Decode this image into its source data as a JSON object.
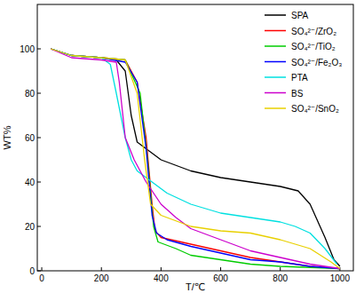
{
  "chart_data": {
    "type": "line",
    "x_label": "T/℃",
    "y_label": "WT%",
    "xlim": [
      -15,
      1045
    ],
    "ylim": [
      0,
      120
    ],
    "xticks": [
      0,
      200,
      400,
      600,
      800,
      1000
    ],
    "yticks": [
      0,
      20,
      40,
      60,
      80,
      100
    ],
    "grid": false,
    "legend": "top-right",
    "series": [
      {
        "name": "SPA",
        "color": "#000000",
        "x": [
          30,
          100,
          200,
          250,
          280,
          300,
          320,
          350,
          400,
          500,
          600,
          700,
          800,
          860,
          900,
          950,
          980,
          1000
        ],
        "values": [
          100,
          97,
          96,
          95,
          90,
          70,
          58,
          55,
          50,
          45,
          42,
          40,
          38,
          36,
          30,
          15,
          5,
          2
        ]
      },
      {
        "name": "SO₄²⁻/ZrO₂",
        "color": "#ff0000",
        "x": [
          30,
          100,
          200,
          280,
          320,
          350,
          370,
          380,
          400,
          500,
          600,
          700,
          800,
          900,
          1000
        ],
        "values": [
          100,
          97,
          96,
          95,
          85,
          60,
          30,
          18,
          15,
          12,
          9,
          6,
          4,
          2,
          1
        ]
      },
      {
        "name": "SO₄²⁻/TiO₂",
        "color": "#00cc00",
        "x": [
          30,
          100,
          200,
          280,
          330,
          355,
          375,
          390,
          450,
          500,
          600,
          700,
          800,
          1000
        ],
        "values": [
          100,
          97,
          96,
          95,
          80,
          50,
          20,
          13,
          10,
          7,
          5,
          3,
          2,
          1
        ]
      },
      {
        "name": "SO₄²⁻/Fe₂O₃",
        "color": "#0000ff",
        "x": [
          30,
          100,
          200,
          280,
          320,
          350,
          370,
          385,
          420,
          500,
          600,
          700,
          800,
          900,
          1000
        ],
        "values": [
          100,
          97,
          96,
          94,
          85,
          55,
          25,
          17,
          14,
          11,
          8,
          5,
          4,
          2,
          1
        ]
      },
      {
        "name": "PTA",
        "color": "#00e0e0",
        "x": [
          30,
          100,
          200,
          230,
          250,
          280,
          300,
          320,
          370,
          420,
          500,
          600,
          700,
          800,
          850,
          900,
          950,
          990
        ],
        "values": [
          100,
          97,
          96,
          93,
          80,
          60,
          50,
          45,
          40,
          35,
          30,
          26,
          24,
          22,
          20,
          17,
          10,
          3
        ]
      },
      {
        "name": "BS",
        "color": "#cc00cc",
        "x": [
          30,
          100,
          200,
          250,
          260,
          280,
          310,
          350,
          400,
          450,
          500,
          600,
          700,
          800,
          900,
          1000
        ],
        "values": [
          100,
          96,
          95,
          94,
          85,
          60,
          50,
          40,
          30,
          24,
          19,
          14,
          9,
          6,
          3,
          1
        ]
      },
      {
        "name": "SO₄²⁻/SnO₂",
        "color": "#e8d000",
        "x": [
          30,
          100,
          200,
          280,
          320,
          345,
          365,
          400,
          500,
          600,
          700,
          800,
          900,
          970,
          1000
        ],
        "values": [
          100,
          97,
          96,
          95,
          80,
          50,
          30,
          25,
          20,
          18,
          17,
          14,
          10,
          4,
          1
        ]
      }
    ]
  }
}
